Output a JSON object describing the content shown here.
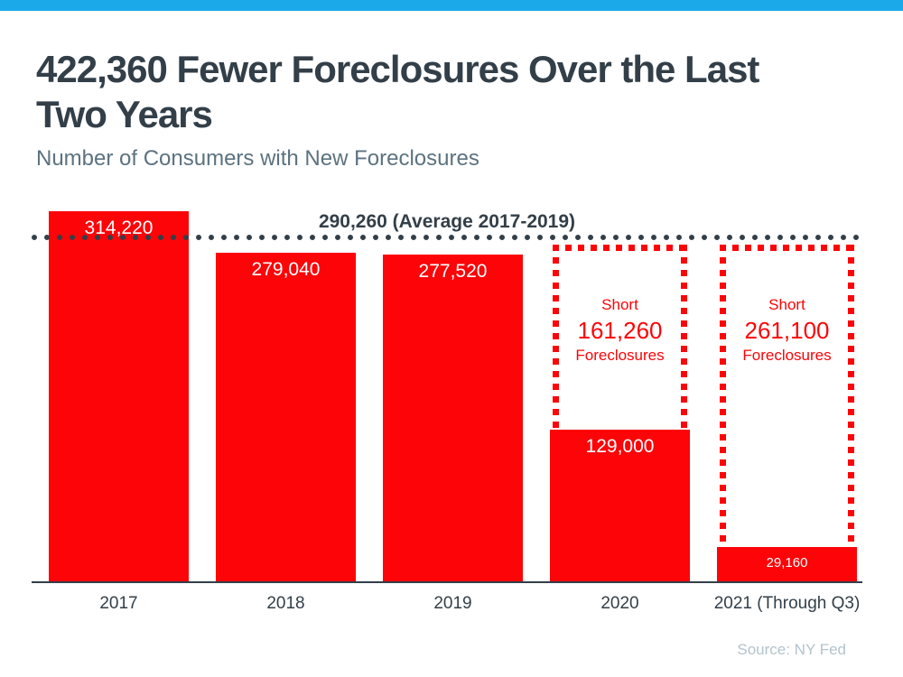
{
  "page": {
    "title": "422,360 Fewer Foreclosures Over the Last\nTwo Years",
    "subtitle": "Number of Consumers with New Foreclosures",
    "source": "Source: NY Fed"
  },
  "colors": {
    "accent_blue": "#1BA9EA",
    "bar_red": "#FC0408",
    "dark_slate": "#333F48",
    "subtitle_gray": "#5C7280",
    "source_gray": "#B4C3CD"
  },
  "chart_data": {
    "type": "bar",
    "title": "422,360 Fewer Foreclosures Over the Last Two Years",
    "subtitle": "Number of Consumers with New Foreclosures",
    "xlabel": "",
    "ylabel": "",
    "ylim": [
      0,
      330000
    ],
    "grid": false,
    "categories": [
      "2017",
      "2018",
      "2019",
      "2020",
      "2021 (Through Q3)"
    ],
    "values": [
      314220,
      279040,
      277520,
      129000,
      29160
    ],
    "bar_labels": [
      "314,220",
      "279,040",
      "277,520",
      "129,000",
      "29,160"
    ],
    "average_line": {
      "value": 290260,
      "label": "290,260 (Average 2017-2019)",
      "style": "dotted"
    },
    "shortfalls": [
      {
        "category": "2020",
        "line1": "Short",
        "amount": "161,260",
        "line3": "Foreclosures"
      },
      {
        "category": "2021 (Through Q3)",
        "line1": "Short",
        "amount": "261,100",
        "line3": "Foreclosures"
      }
    ],
    "source": "Source: NY Fed"
  }
}
